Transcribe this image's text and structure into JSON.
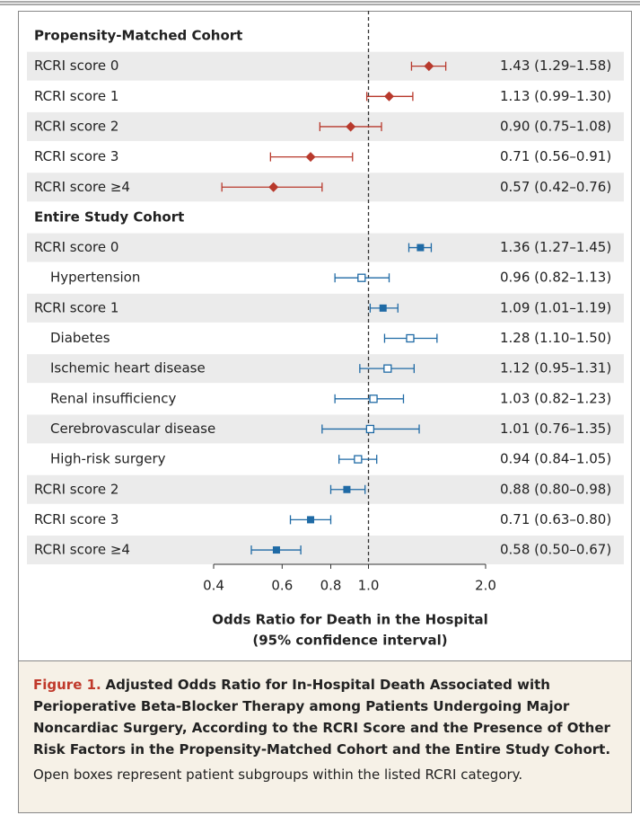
{
  "chart_data": {
    "type": "forest",
    "figure_label": "Figure 1.",
    "title": "Adjusted Odds Ratio for In-Hospital Death Associated with Perioperative Beta-Blocker Therapy among Patients Undergoing Major Noncardiac Surgery, According to the RCRI Score and the Presence of Other Risk Factors in the Propensity-Matched Cohort and the Entire Study Cohort.",
    "note": "Open boxes represent patient subgroups within the listed RCRI category.",
    "xlabel": [
      "Odds Ratio for Death in the Hospital",
      "(95% confidence interval)"
    ],
    "xscale": "log",
    "xlim": [
      0.4,
      2.0
    ],
    "xticks": [
      0.4,
      0.6,
      0.8,
      {
        "value": 1.0,
        "label": "1.0"
      },
      {
        "value": 2.0,
        "label": "2.0"
      }
    ],
    "reference": 1,
    "series": [
      {
        "name": "Propensity-Matched Cohort",
        "color": "#b8392c",
        "marker": "diamond",
        "categories": [
          "RCRI score 0",
          "RCRI score 1",
          "RCRI score 2",
          "RCRI score 3",
          "RCRI score ≥4"
        ],
        "open": [
          false,
          false,
          false,
          false,
          false
        ],
        "values": [
          1.43,
          1.13,
          0.9,
          0.71,
          0.57
        ],
        "lows": [
          1.29,
          0.99,
          0.75,
          0.56,
          0.42
        ],
        "highs": [
          1.58,
          1.3,
          1.08,
          0.91,
          0.76
        ],
        "value_labels": [
          "1.43 (1.29–1.58)",
          "1.13 (0.99–1.30)",
          "0.90 (0.75–1.08)",
          "0.71 (0.56–0.91)",
          "0.57 (0.42–0.76)"
        ]
      },
      {
        "name": "Entire Study Cohort",
        "color": "#1f6aa5",
        "marker": "square",
        "categories": [
          "RCRI score 0",
          "Hypertension",
          "RCRI score 1",
          "Diabetes",
          "Ischemic heart disease",
          "Renal insufficiency",
          "Cerebrovascular disease",
          "High-risk surgery",
          "RCRI score 2",
          "RCRI score 3",
          "RCRI score ≥4"
        ],
        "open": [
          false,
          true,
          false,
          true,
          true,
          true,
          true,
          true,
          false,
          false,
          false
        ],
        "values": [
          1.36,
          0.96,
          1.09,
          1.28,
          1.12,
          1.03,
          1.01,
          0.94,
          0.88,
          0.71,
          0.58
        ],
        "lows": [
          1.27,
          0.82,
          1.01,
          1.1,
          0.95,
          0.82,
          0.76,
          0.84,
          0.8,
          0.63,
          0.5
        ],
        "highs": [
          1.45,
          1.13,
          1.19,
          1.5,
          1.31,
          1.23,
          1.35,
          1.05,
          0.98,
          0.8,
          0.67
        ],
        "value_labels": [
          "1.36 (1.27–1.45)",
          "0.96 (0.82–1.13)",
          "1.09 (1.01–1.19)",
          "1.28 (1.10–1.50)",
          "1.12 (0.95–1.31)",
          "1.03 (0.82–1.23)",
          "1.01 (0.76–1.35)",
          "0.94 (0.84–1.05)",
          "0.88 (0.80–0.98)",
          "0.71 (0.63–0.80)",
          "0.58 (0.50–0.67)"
        ]
      }
    ]
  }
}
